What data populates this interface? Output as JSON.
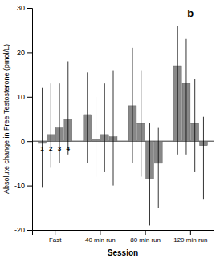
{
  "chart_data": {
    "type": "bar",
    "annotation": "b",
    "x_label": "Session",
    "y_label": "Absolute change in Free Testosterone (pmol/L)",
    "categories": [
      "Fast",
      "40 min run",
      "80 min run",
      "120 min run"
    ],
    "color": "#888888",
    "ylim": [
      -20,
      30
    ],
    "yticks": [
      -20,
      -10,
      0,
      10,
      20,
      30
    ],
    "series": [
      {
        "name": "1",
        "values": [
          -0.5,
          6.0,
          8.0,
          17.0
        ],
        "error_high": [
          12.0,
          15.5,
          21.0,
          26.0
        ],
        "error_low": [
          -10.5,
          -5.0,
          -5.0,
          -3.0
        ]
      },
      {
        "name": "2",
        "values": [
          1.5,
          0.5,
          4.0,
          13.0
        ],
        "error_high": [
          13.0,
          10.0,
          16.0,
          23.0
        ],
        "error_low": [
          -6.0,
          -8.0,
          -8.0,
          -3.0
        ]
      },
      {
        "name": "3",
        "values": [
          3.0,
          1.5,
          -8.5,
          4.0
        ],
        "error_high": [
          13.0,
          13.0,
          4.0,
          14.0
        ],
        "error_low": [
          -5.0,
          -7.0,
          -19.0,
          -7.0
        ]
      },
      {
        "name": "4",
        "values": [
          5.0,
          1.0,
          -5.0,
          -1.0
        ],
        "error_high": [
          18.0,
          16.0,
          3.0,
          5.5
        ],
        "error_low": [
          -3.0,
          -10.0,
          -15.0,
          -13.0
        ]
      }
    ]
  }
}
